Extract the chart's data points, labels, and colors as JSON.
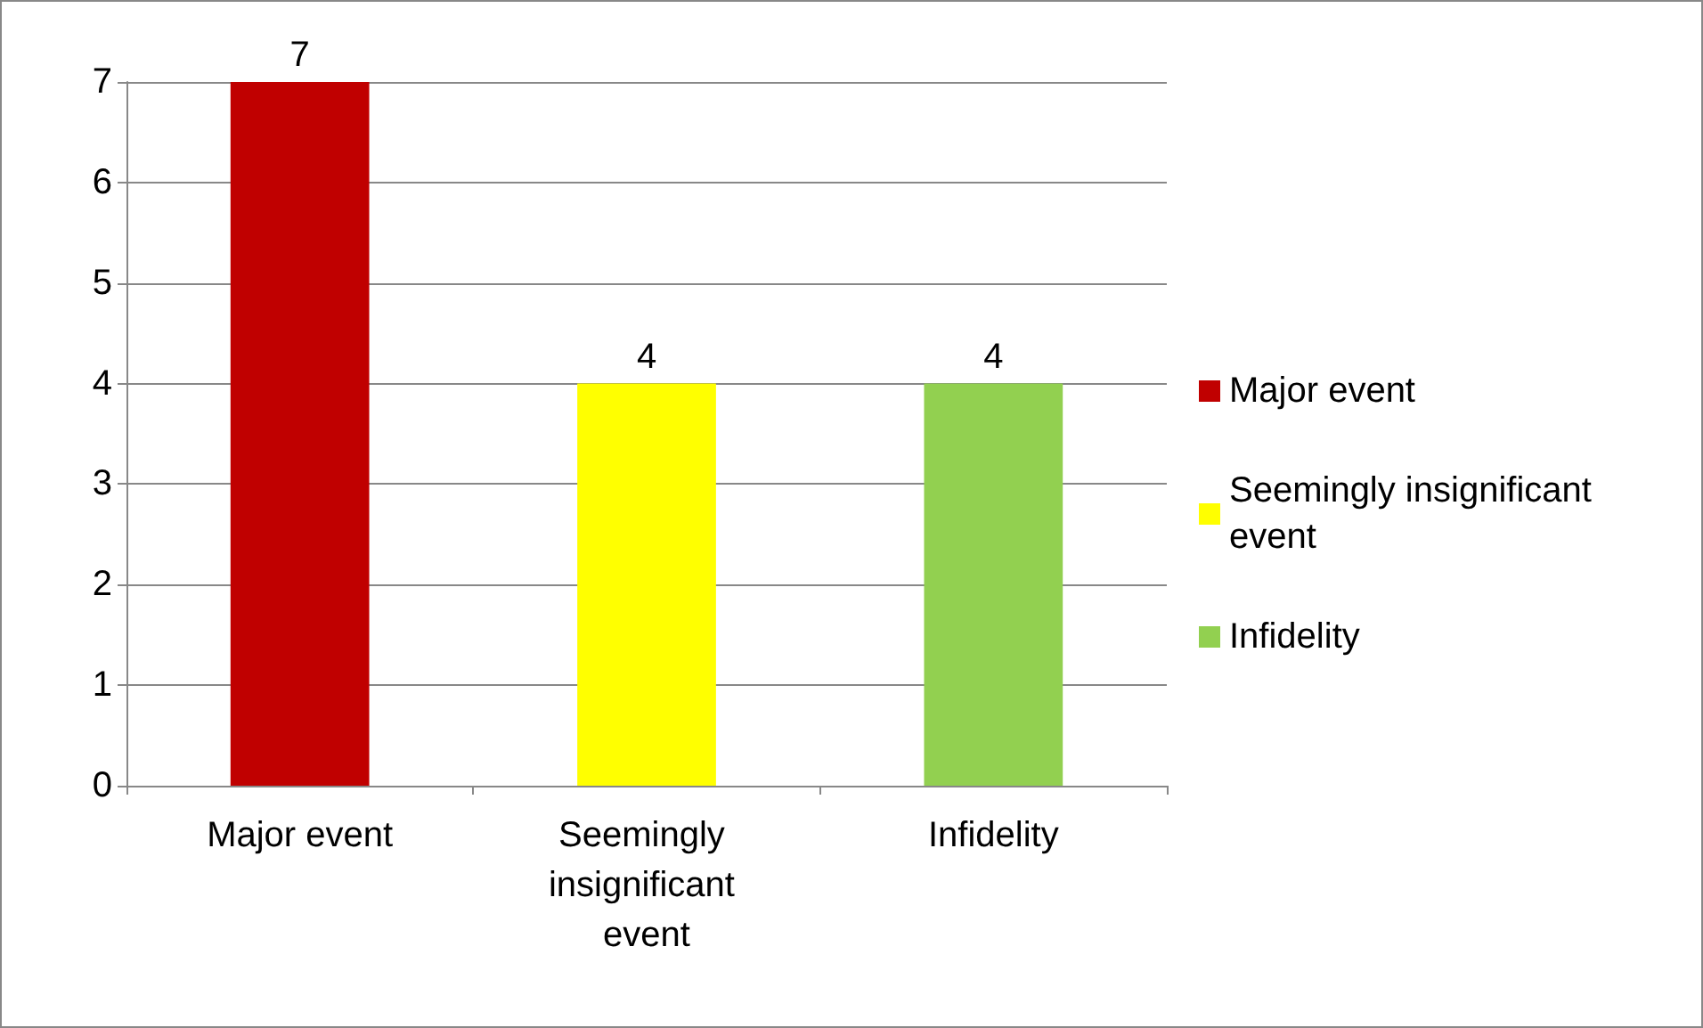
{
  "chart_data": {
    "type": "bar",
    "categories": [
      "Major event",
      "Seemingly insignificant event",
      "Infidelity"
    ],
    "series": [
      {
        "name": "Major event",
        "color": "#c00000",
        "values": [
          7,
          null,
          null
        ]
      },
      {
        "name": "Seemingly insignificant event",
        "color": "#ffff00",
        "values": [
          null,
          4,
          null
        ]
      },
      {
        "name": "Infidelity",
        "color": "#92d050",
        "values": [
          null,
          null,
          4
        ]
      }
    ],
    "ylim": [
      0,
      7
    ],
    "yticks": [
      0,
      1,
      2,
      3,
      4,
      5,
      6,
      7
    ],
    "grid": "y",
    "legend": "right",
    "data_labels": true
  }
}
